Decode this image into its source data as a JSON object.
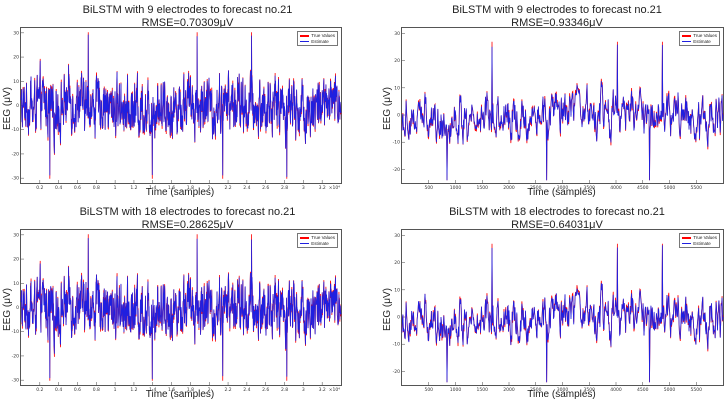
{
  "chart_data": [
    {
      "type": "line",
      "title": "BiLSTM with 9 electrodes to forecast no.21",
      "subtitle": "RMSE=0.70309μV",
      "xlabel": "Time (samples)",
      "ylabel": "EEG (μV)",
      "xlim": [
        0,
        34000
      ],
      "ylim": [
        -32,
        32
      ],
      "x_ticks": [
        "0.2",
        "0.4",
        "0.6",
        "0.8",
        "1",
        "1.2",
        "1.4",
        "1.6",
        "1.8",
        "2",
        "2.2",
        "2.4",
        "2.6",
        "2.8",
        "3",
        "3.2"
      ],
      "x_exponent": "×10⁴",
      "y_ticks": [
        "30",
        "20",
        "10",
        "0",
        "-10",
        "-20",
        "-30"
      ],
      "series": [
        {
          "name": "True Values",
          "color": "#ff0000"
        },
        {
          "name": "Estimate",
          "color": "#1f1fe0"
        }
      ],
      "legend": "top-right",
      "amplitude": 14,
      "spikes": [
        0.09,
        0.21,
        0.41,
        0.55,
        0.63,
        0.72,
        0.83
      ]
    },
    {
      "type": "line",
      "title": "BiLSTM with 9 electrodes to forecast no.21",
      "subtitle": "RMSE=0.93346μV",
      "xlabel": "Time (samples)",
      "ylabel": "EEG (μV)",
      "xlim": [
        0,
        6000
      ],
      "ylim": [
        -25,
        32
      ],
      "x_ticks": [
        "500",
        "1000",
        "1500",
        "2000",
        "2500",
        "3000",
        "3500",
        "4000",
        "4500",
        "5000",
        "5500"
      ],
      "x_exponent": "",
      "y_ticks": [
        "30",
        "20",
        "10",
        "0",
        "-10",
        "-20"
      ],
      "series": [
        {
          "name": "True Values",
          "color": "#ff0000"
        },
        {
          "name": "Estimate",
          "color": "#1f1fe0"
        }
      ],
      "legend": "top-right",
      "amplitude": 10,
      "spikes": [
        0.14,
        0.28,
        0.45,
        0.67,
        0.77,
        0.81
      ]
    },
    {
      "type": "line",
      "title": "BiLSTM with 18 electrodes to forecast no.21",
      "subtitle": "RMSE=0.28625μV",
      "xlabel": "Time (samples)",
      "ylabel": "EEG (μV)",
      "xlim": [
        0,
        34000
      ],
      "ylim": [
        -32,
        32
      ],
      "x_ticks": [
        "0.2",
        "0.4",
        "0.6",
        "0.8",
        "1",
        "1.2",
        "1.4",
        "1.6",
        "1.8",
        "2",
        "2.2",
        "2.4",
        "2.6",
        "2.8",
        "3",
        "3.2"
      ],
      "x_exponent": "×10⁴",
      "y_ticks": [
        "30",
        "20",
        "10",
        "0",
        "-10",
        "-20",
        "-30"
      ],
      "series": [
        {
          "name": "True Values",
          "color": "#ff0000"
        },
        {
          "name": "Estimate",
          "color": "#1f1fe0"
        }
      ],
      "legend": "top-right",
      "amplitude": 14,
      "spikes": [
        0.09,
        0.21,
        0.41,
        0.55,
        0.63,
        0.72,
        0.83
      ]
    },
    {
      "type": "line",
      "title": "BiLSTM with 18 electrodes to forecast no.21",
      "subtitle": "RMSE=0.64031μV",
      "xlabel": "Time (samples)",
      "ylabel": "EEG (μV)",
      "xlim": [
        0,
        6000
      ],
      "ylim": [
        -25,
        32
      ],
      "x_ticks": [
        "500",
        "1000",
        "1500",
        "2000",
        "2500",
        "3000",
        "3500",
        "4000",
        "4500",
        "5000",
        "5500"
      ],
      "x_exponent": "",
      "y_ticks": [
        "30",
        "20",
        "10",
        "0",
        "-10",
        "-20"
      ],
      "series": [
        {
          "name": "True Values",
          "color": "#ff0000"
        },
        {
          "name": "Estimate",
          "color": "#1f1fe0"
        }
      ],
      "legend": "top-right",
      "amplitude": 10,
      "spikes": [
        0.14,
        0.28,
        0.45,
        0.67,
        0.77,
        0.81
      ]
    }
  ]
}
